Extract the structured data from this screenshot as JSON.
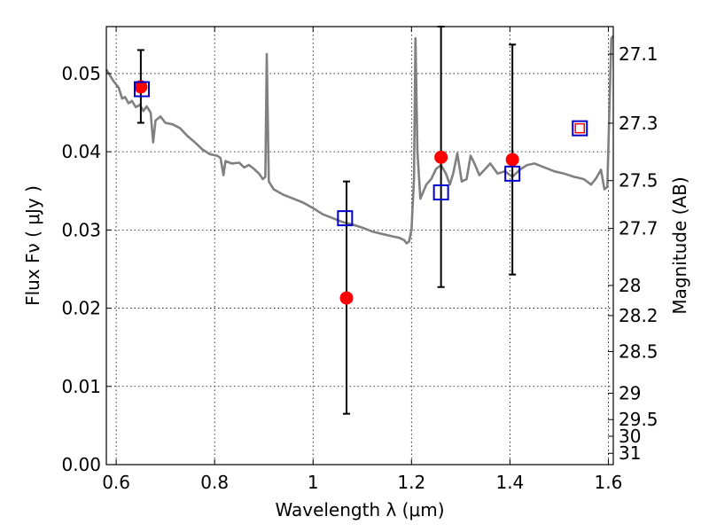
{
  "chart_data": {
    "type": "scatter",
    "title": "",
    "xlabel": "Wavelength  λ (μm)",
    "ylabel": "Flux  Fν  ( μJy )",
    "ylabel_right": "Magnitude (AB)",
    "xlim": [
      0.58,
      1.61
    ],
    "ylim": [
      0.0,
      0.056
    ],
    "grid": true,
    "grid_style": "dotted",
    "x_ticks": [
      0.6,
      0.8,
      1.0,
      1.2,
      1.4,
      1.6
    ],
    "x_tick_labels": [
      "0.6",
      "0.8",
      "1",
      "1.2",
      "1.4",
      "1.6"
    ],
    "y_ticks": [
      0.0,
      0.01,
      0.02,
      0.03,
      0.04,
      0.05
    ],
    "y_tick_labels": [
      "0.00",
      "0.01",
      "0.02",
      "0.03",
      "0.04",
      "0.05"
    ],
    "right_ticks": [
      {
        "label": "27.1",
        "mag": 27.1
      },
      {
        "label": "27.3",
        "mag": 27.3
      },
      {
        "label": "27.5",
        "mag": 27.5
      },
      {
        "label": "27.7",
        "mag": 27.7
      },
      {
        "label": "28",
        "mag": 28.0
      },
      {
        "label": "28.2",
        "mag": 28.2
      },
      {
        "label": "28.5",
        "mag": 28.5
      },
      {
        "label": "29",
        "mag": 29.0
      },
      {
        "label": "29.5",
        "mag": 29.5
      },
      {
        "label": "30",
        "mag": 30.0
      },
      {
        "label": "31",
        "mag": 31.0
      }
    ],
    "colors": {
      "spectrum": "#808080",
      "observed": "#ff0000",
      "model": "#0000cc",
      "errorbar": "#000000"
    },
    "series": [
      {
        "kind": "line",
        "points": [
          [
            0.58,
            0.0505
          ],
          [
            0.595,
            0.049
          ],
          [
            0.605,
            0.0482
          ],
          [
            0.612,
            0.0468
          ],
          [
            0.618,
            0.047
          ],
          [
            0.625,
            0.0462
          ],
          [
            0.632,
            0.0465
          ],
          [
            0.64,
            0.0457
          ],
          [
            0.648,
            0.046
          ],
          [
            0.655,
            0.0452
          ],
          [
            0.662,
            0.0458
          ],
          [
            0.67,
            0.045
          ],
          [
            0.675,
            0.0412
          ],
          [
            0.68,
            0.044
          ],
          [
            0.69,
            0.0445
          ],
          [
            0.7,
            0.0437
          ],
          [
            0.715,
            0.0435
          ],
          [
            0.73,
            0.043
          ],
          [
            0.745,
            0.042
          ],
          [
            0.76,
            0.0412
          ],
          [
            0.775,
            0.0403
          ],
          [
            0.79,
            0.0397
          ],
          [
            0.805,
            0.0395
          ],
          [
            0.812,
            0.0392
          ],
          [
            0.818,
            0.037
          ],
          [
            0.822,
            0.0388
          ],
          [
            0.835,
            0.0385
          ],
          [
            0.85,
            0.0386
          ],
          [
            0.86,
            0.038
          ],
          [
            0.87,
            0.0383
          ],
          [
            0.88,
            0.0378
          ],
          [
            0.89,
            0.0372
          ],
          [
            0.898,
            0.0365
          ],
          [
            0.903,
            0.0368
          ],
          [
            0.906,
            0.0525
          ],
          [
            0.91,
            0.0362
          ],
          [
            0.92,
            0.0352
          ],
          [
            0.94,
            0.0345
          ],
          [
            0.96,
            0.034
          ],
          [
            0.98,
            0.0335
          ],
          [
            1.0,
            0.0328
          ],
          [
            1.02,
            0.032
          ],
          [
            1.04,
            0.0315
          ],
          [
            1.06,
            0.031
          ],
          [
            1.08,
            0.0307
          ],
          [
            1.1,
            0.0303
          ],
          [
            1.12,
            0.0298
          ],
          [
            1.14,
            0.0295
          ],
          [
            1.16,
            0.0292
          ],
          [
            1.175,
            0.029
          ],
          [
            1.185,
            0.0287
          ],
          [
            1.19,
            0.0283
          ],
          [
            1.195,
            0.0285
          ],
          [
            1.2,
            0.03
          ],
          [
            1.205,
            0.0365
          ],
          [
            1.208,
            0.0545
          ],
          [
            1.212,
            0.04
          ],
          [
            1.218,
            0.034
          ],
          [
            1.23,
            0.0358
          ],
          [
            1.24,
            0.0365
          ],
          [
            1.25,
            0.0378
          ],
          [
            1.26,
            0.0383
          ],
          [
            1.27,
            0.0372
          ],
          [
            1.278,
            0.0358
          ],
          [
            1.285,
            0.0373
          ],
          [
            1.293,
            0.0398
          ],
          [
            1.302,
            0.0362
          ],
          [
            1.312,
            0.0365
          ],
          [
            1.32,
            0.0395
          ],
          [
            1.328,
            0.0385
          ],
          [
            1.338,
            0.037
          ],
          [
            1.35,
            0.0378
          ],
          [
            1.36,
            0.0385
          ],
          [
            1.375,
            0.0372
          ],
          [
            1.39,
            0.0375
          ],
          [
            1.405,
            0.0368
          ],
          [
            1.42,
            0.0377
          ],
          [
            1.435,
            0.0383
          ],
          [
            1.45,
            0.0385
          ],
          [
            1.47,
            0.038
          ],
          [
            1.49,
            0.0375
          ],
          [
            1.51,
            0.0372
          ],
          [
            1.53,
            0.0368
          ],
          [
            1.55,
            0.0365
          ],
          [
            1.565,
            0.0358
          ],
          [
            1.575,
            0.0366
          ],
          [
            1.585,
            0.0377
          ],
          [
            1.592,
            0.0352
          ],
          [
            1.598,
            0.0355
          ],
          [
            1.603,
            0.0475
          ],
          [
            1.606,
            0.0545
          ],
          [
            1.61,
            0.0548
          ]
        ]
      },
      {
        "kind": "errorbar",
        "points": [
          {
            "x": 0.65,
            "y": 0.0483,
            "lo": 0.0437,
            "hi": 0.053
          },
          {
            "x": 1.068,
            "y": 0.0213,
            "lo": 0.0065,
            "hi": 0.0362
          },
          {
            "x": 1.26,
            "y": 0.0393,
            "lo": 0.0227,
            "hi": 0.056
          },
          {
            "x": 1.405,
            "y": 0.039,
            "lo": 0.0243,
            "hi": 0.0537
          }
        ]
      },
      {
        "kind": "marker",
        "shape": "circle",
        "points": [
          [
            0.65,
            0.0483
          ],
          [
            1.068,
            0.0213
          ],
          [
            1.26,
            0.0393
          ],
          [
            1.405,
            0.039
          ]
        ]
      },
      {
        "kind": "marker",
        "shape": "square",
        "points": [
          [
            0.652,
            0.048
          ],
          [
            1.065,
            0.0315
          ],
          [
            1.26,
            0.0348
          ],
          [
            1.405,
            0.0372
          ],
          [
            1.542,
            0.043
          ]
        ]
      },
      {
        "kind": "marker",
        "shape": "small-square",
        "points": [
          [
            1.542,
            0.043
          ]
        ]
      }
    ]
  }
}
